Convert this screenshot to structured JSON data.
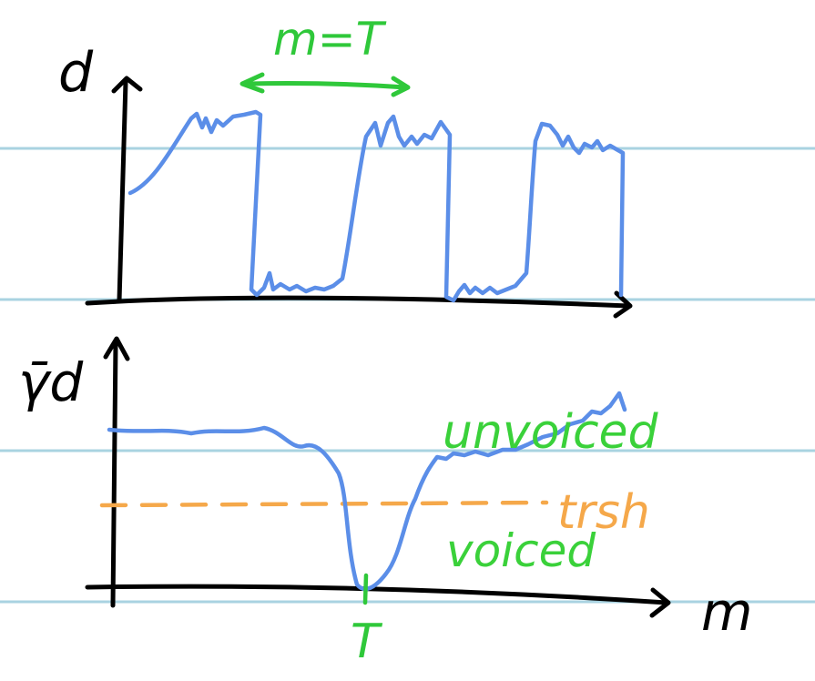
{
  "top_plot": {
    "y_axis_label": "d",
    "period_label": "m=T"
  },
  "bottom_plot": {
    "y_axis_label": "γ̄d",
    "x_axis_label": "m",
    "x_tick_label": "T",
    "upper_region_label": "unvoiced",
    "threshold_label": "trsh",
    "lower_region_label": "voiced"
  },
  "colors": {
    "paper_lines": "#a9d3e1",
    "axes": "#000000",
    "signal": "#5b8ee8",
    "annotation_green": "#2fc83a",
    "threshold_orange": "#f5a84a",
    "label_green": "#3ad13a"
  }
}
